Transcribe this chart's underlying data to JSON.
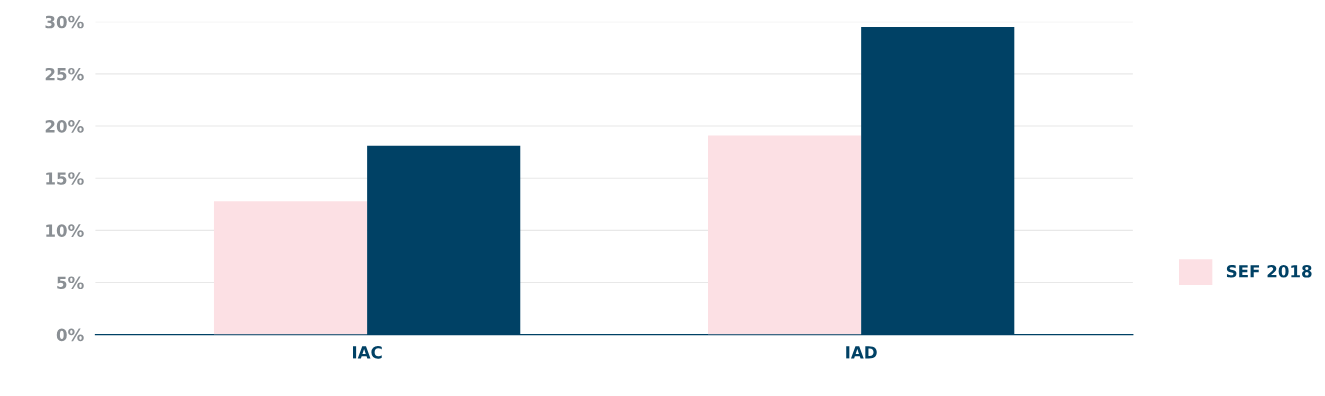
{
  "chart_data": {
    "type": "bar",
    "categories": [
      "IAC",
      "IAD"
    ],
    "series": [
      {
        "name": "SEF 2018",
        "color": "#fce0e4",
        "values": [
          12.8,
          19.1
        ]
      },
      {
        "color": "#004165",
        "values": [
          18.1,
          29.5
        ]
      }
    ],
    "ylim": [
      0,
      30
    ],
    "yticks": [
      {
        "value": 0,
        "label": "0%"
      },
      {
        "value": 5,
        "label": "5%"
      },
      {
        "value": 10,
        "label": "10%"
      },
      {
        "value": 15,
        "label": "15%"
      },
      {
        "value": 20,
        "label": "20%"
      },
      {
        "value": 25,
        "label": "25%"
      },
      {
        "value": 30,
        "label": "30%"
      }
    ],
    "grid": "y",
    "legend": "right"
  }
}
